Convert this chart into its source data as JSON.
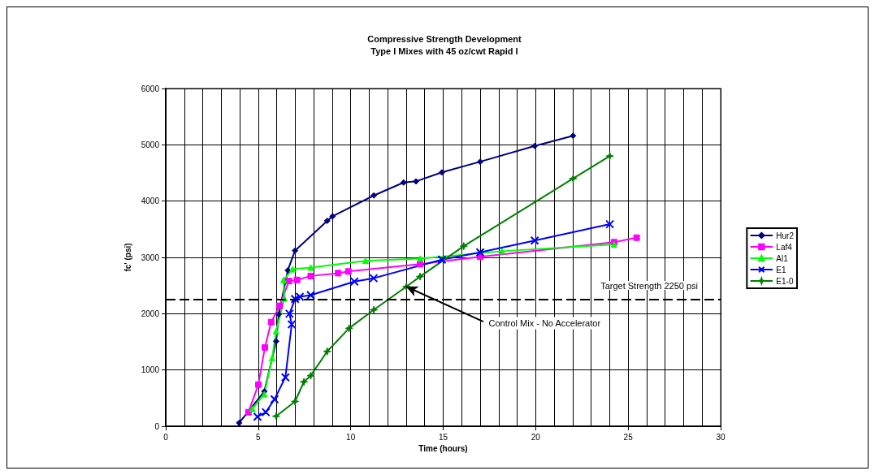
{
  "chart_data": {
    "type": "line",
    "title": "Compressive Strength Development",
    "subtitle": "Type I Mixes with 45 oz/cwt Rapid I",
    "xlabel": "Time (hours)",
    "ylabel": "fc' (psi)",
    "xlim": [
      0,
      30
    ],
    "xticks": [
      0,
      5,
      10,
      15,
      20,
      25,
      30
    ],
    "ylim": [
      0,
      6000
    ],
    "yticks": [
      0,
      1000,
      2000,
      3000,
      4000,
      5000,
      6000
    ],
    "grid": true,
    "legend": "right",
    "line_style": "solid",
    "series": [
      {
        "name": "Hur2",
        "color": "#000080",
        "marker": "diamond",
        "x": [
          3.97,
          5.33,
          5.97,
          6.11,
          6.6,
          6.99,
          8.73,
          9.02,
          11.25,
          12.86,
          13.53,
          14.93,
          17.0,
          19.95,
          22.02
        ],
        "values": [
          60,
          620,
          1510,
          1990,
          2770,
          3120,
          3650,
          3730,
          4100,
          4330,
          4350,
          4510,
          4700,
          4980,
          5160
        ]
      },
      {
        "name": "Laf4",
        "color": "#ff00ff",
        "marker": "square",
        "x": [
          4.47,
          5.01,
          5.36,
          5.7,
          6.16,
          6.66,
          7.1,
          7.84,
          9.32,
          9.87,
          13.75,
          17.0,
          24.24,
          25.46
        ],
        "values": [
          250,
          740,
          1400,
          1850,
          2140,
          2580,
          2600,
          2670,
          2720,
          2750,
          2880,
          3010,
          3270,
          3350
        ]
      },
      {
        "name": "Al1",
        "color": "#00ff00",
        "marker": "triangle",
        "x": [
          4.68,
          5.33,
          5.75,
          5.97,
          6.41,
          6.37,
          6.85,
          7.84,
          10.8,
          13.75,
          18.18,
          24.24
        ],
        "values": [
          310,
          570,
          1210,
          1690,
          2270,
          2600,
          2790,
          2820,
          2940,
          2980,
          3110,
          3230
        ]
      },
      {
        "name": "E1",
        "color": "#0000ff",
        "marker": "cross",
        "x": [
          4.96,
          5.41,
          5.88,
          6.47,
          6.81,
          6.69,
          6.99,
          7.25,
          7.84,
          10.2,
          11.24,
          14.93,
          17.0,
          19.95,
          24.01
        ],
        "values": [
          170,
          250,
          480,
          870,
          1810,
          2000,
          2260,
          2300,
          2330,
          2570,
          2630,
          2960,
          3090,
          3300,
          3590
        ]
      },
      {
        "name": "E1-0",
        "color": "#008000",
        "marker": "star",
        "x": [
          5.97,
          6.99,
          7.47,
          7.84,
          8.73,
          9.91,
          11.25,
          13.01,
          13.75,
          16.11,
          22.02,
          24.01
        ],
        "values": [
          180,
          440,
          790,
          900,
          1330,
          1740,
          2070,
          2480,
          2660,
          3200,
          4400,
          4800
        ]
      }
    ],
    "ref_lines": [
      {
        "axis": "y",
        "value": 2250,
        "label": "Target Strength 2250 psi",
        "color": "#000000",
        "line_style": "dashed"
      }
    ],
    "annotations": [
      {
        "text": "Control Mix - No Accelerator",
        "x": 13,
        "y": 2480
      }
    ]
  }
}
